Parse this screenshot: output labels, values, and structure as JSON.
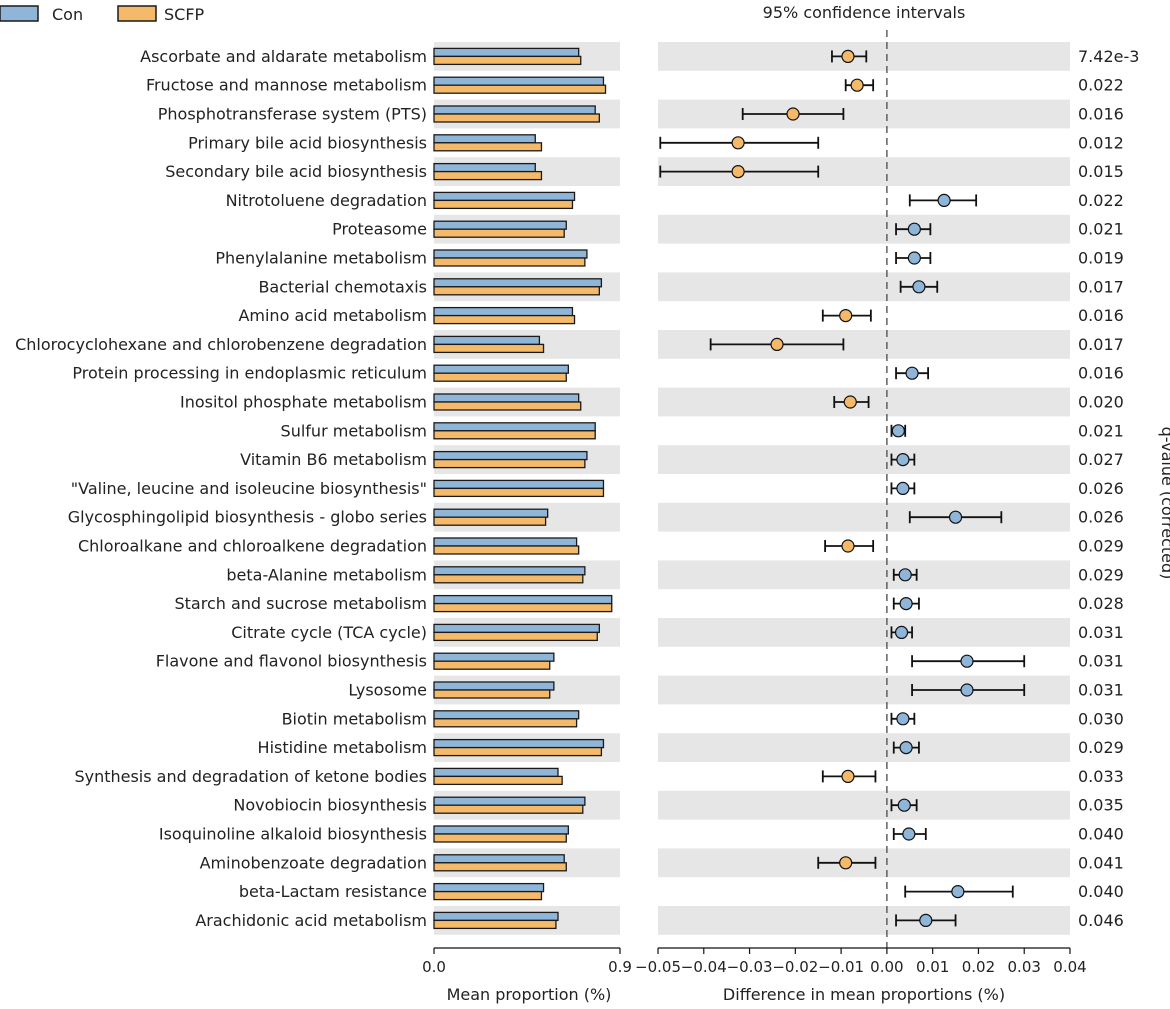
{
  "chart_data": {
    "type": "bar",
    "title": "95% confidence intervals",
    "legend": [
      "Con",
      "SCFP"
    ],
    "colors": {
      "Con": "#8fb6d8",
      "SCFP": "#f5b96a",
      "edge": "#1a1a1a",
      "stripe": "#e6e6e6"
    },
    "left_panel": {
      "xlabel": "Mean proportion (%)",
      "xlim": [
        0.0,
        0.9
      ],
      "ticks": [
        "0.0",
        "0.9"
      ]
    },
    "right_panel": {
      "xlabel": "Difference in mean proportions (%)",
      "xlim": [
        -0.05,
        0.04
      ],
      "ticks": [
        "−0.05",
        "−0.04",
        "−0.03",
        "−0.02",
        "−0.01",
        "0.00",
        "0.01",
        "0.02",
        "0.03",
        "0.04"
      ],
      "tick_values": [
        -0.05,
        -0.04,
        -0.03,
        -0.02,
        -0.01,
        0.0,
        0.01,
        0.02,
        0.03,
        0.04
      ]
    },
    "qlabel": "q-value (corrected)",
    "categories": [
      "Ascorbate and aldarate metabolism",
      "Fructose and mannose metabolism",
      "Phosphotransferase system (PTS)",
      "Primary bile acid biosynthesis",
      "Secondary bile acid biosynthesis",
      "Nitrotoluene degradation",
      "Proteasome",
      "Phenylalanine metabolism",
      "Bacterial chemotaxis",
      "Amino acid metabolism",
      "Chlorocyclohexane and chlorobenzene degradation",
      "Protein processing in endoplasmic reticulum",
      "Inositol phosphate metabolism",
      "Sulfur metabolism",
      "Vitamin B6 metabolism",
      "\"Valine, leucine and isoleucine biosynthesis\"",
      "Glycosphingolipid biosynthesis - globo series",
      "Chloroalkane and chloroalkene degradation",
      "beta-Alanine metabolism",
      "Starch and sucrose metabolism",
      "Citrate cycle (TCA cycle)",
      "Flavone and flavonol biosynthesis",
      "Lysosome",
      "Biotin metabolism",
      "Histidine metabolism",
      "Synthesis and degradation of ketone bodies",
      "Novobiocin biosynthesis",
      "Isoquinoline alkaloid biosynthesis",
      "Aminobenzoate degradation",
      "beta-Lactam resistance",
      "Arachidonic acid metabolism"
    ],
    "series": [
      {
        "name": "Con",
        "values": [
          0.7,
          0.82,
          0.78,
          0.49,
          0.49,
          0.68,
          0.64,
          0.74,
          0.81,
          0.67,
          0.51,
          0.65,
          0.7,
          0.78,
          0.74,
          0.82,
          0.55,
          0.69,
          0.73,
          0.86,
          0.8,
          0.58,
          0.58,
          0.7,
          0.82,
          0.6,
          0.73,
          0.65,
          0.63,
          0.53,
          0.6
        ]
      },
      {
        "name": "SCFP",
        "values": [
          0.71,
          0.83,
          0.8,
          0.52,
          0.52,
          0.67,
          0.63,
          0.73,
          0.8,
          0.68,
          0.53,
          0.64,
          0.71,
          0.78,
          0.73,
          0.82,
          0.54,
          0.7,
          0.72,
          0.86,
          0.79,
          0.56,
          0.56,
          0.69,
          0.81,
          0.62,
          0.72,
          0.64,
          0.64,
          0.52,
          0.59
        ]
      }
    ],
    "differences": [
      -0.0085,
      -0.0065,
      -0.0205,
      -0.0325,
      -0.0325,
      0.0125,
      0.006,
      0.006,
      0.007,
      -0.009,
      -0.024,
      0.0055,
      -0.008,
      0.0025,
      0.0035,
      0.0035,
      0.015,
      -0.0085,
      0.004,
      0.0042,
      0.0032,
      0.0175,
      0.0175,
      0.0035,
      0.0042,
      -0.0085,
      0.0038,
      0.0048,
      -0.009,
      0.0155,
      0.0085
    ],
    "ci_low": [
      -0.012,
      -0.009,
      -0.0315,
      -0.0495,
      -0.0495,
      0.005,
      0.002,
      0.002,
      0.003,
      -0.014,
      -0.0385,
      0.002,
      -0.0115,
      0.001,
      0.001,
      0.001,
      0.005,
      -0.0135,
      0.0015,
      0.0015,
      0.001,
      0.0055,
      0.0055,
      0.001,
      0.0015,
      -0.014,
      0.001,
      0.0015,
      -0.015,
      0.004,
      0.002
    ],
    "ci_high": [
      -0.0045,
      -0.003,
      -0.0095,
      -0.015,
      -0.015,
      0.0195,
      0.0095,
      0.0095,
      0.011,
      -0.0035,
      -0.0095,
      0.009,
      -0.004,
      0.004,
      0.006,
      0.006,
      0.025,
      -0.003,
      0.0065,
      0.007,
      0.0055,
      0.03,
      0.03,
      0.006,
      0.007,
      -0.0025,
      0.0065,
      0.0085,
      -0.0025,
      0.0275,
      0.015
    ],
    "q_values": [
      "7.42e-3",
      "0.022",
      "0.016",
      "0.012",
      "0.015",
      "0.022",
      "0.021",
      "0.019",
      "0.017",
      "0.016",
      "0.017",
      "0.016",
      "0.020",
      "0.021",
      "0.027",
      "0.026",
      "0.026",
      "0.029",
      "0.029",
      "0.028",
      "0.031",
      "0.031",
      "0.031",
      "0.030",
      "0.029",
      "0.033",
      "0.035",
      "0.040",
      "0.041",
      "0.040",
      "0.046"
    ]
  }
}
